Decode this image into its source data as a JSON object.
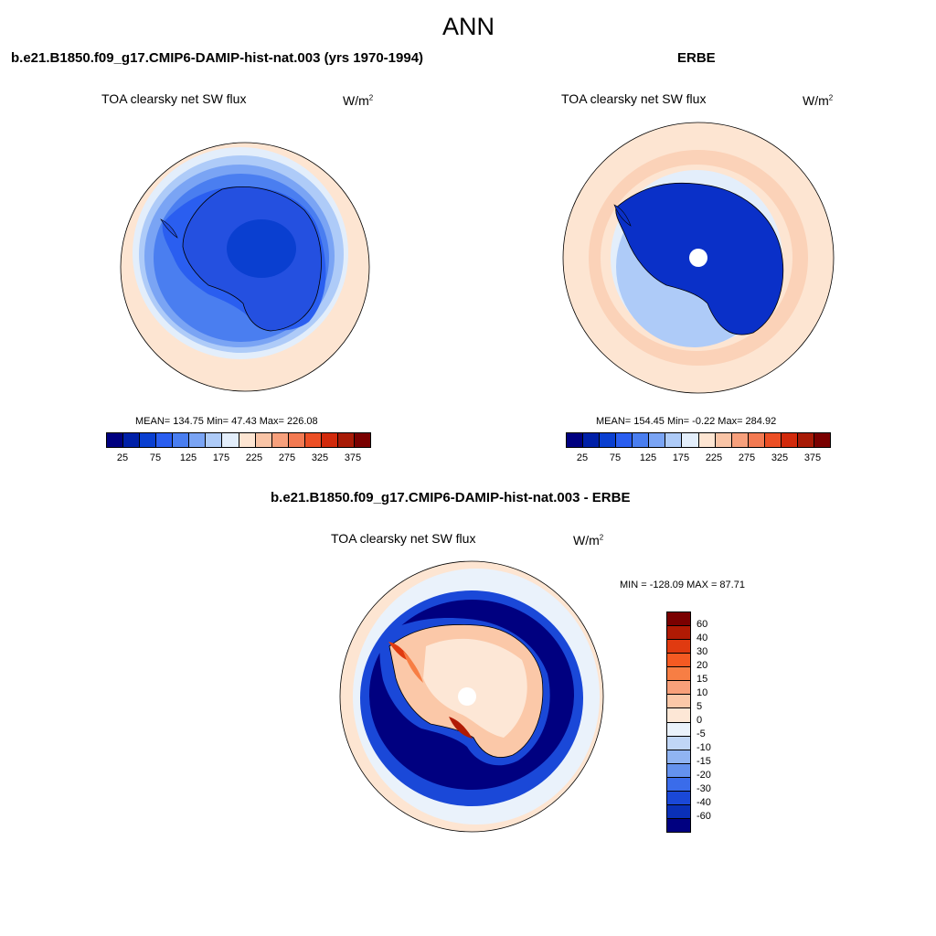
{
  "page_title": "ANN",
  "panels": {
    "model": {
      "title": "b.e21.B1850.f09_g17.CMIP6-DAMIP-hist-nat.003 (yrs 1970-1994)",
      "variable": "TOA clearsky net SW flux",
      "units_base": "W/m",
      "units_exp": "2",
      "stats": "MEAN= 134.75  Min=  47.43  Max= 226.08"
    },
    "obs": {
      "title": "ERBE",
      "variable": "TOA clearsky net SW flux",
      "units_base": "W/m",
      "units_exp": "2",
      "stats": "MEAN= 154.45  Min=  -0.22  Max= 284.92"
    },
    "diff": {
      "title": "b.e21.B1850.f09_g17.CMIP6-DAMIP-hist-nat.003 - ERBE",
      "variable": "TOA clearsky net SW flux",
      "units_base": "W/m",
      "units_exp": "2",
      "stats": "MIN = -128.09 MAX =  87.71"
    }
  },
  "abs_colorbar": {
    "colors": [
      "#000080",
      "#0020a8",
      "#0a3fd0",
      "#2a5ef0",
      "#4a7ef0",
      "#7aa4f4",
      "#aecbf8",
      "#e3eefb",
      "#fde5d2",
      "#f9c4a6",
      "#f7a07c",
      "#f37a52",
      "#ec4f25",
      "#d22a0c",
      "#a81a06",
      "#7a0000"
    ],
    "tick_labels": [
      "25",
      "75",
      "125",
      "175",
      "225",
      "275",
      "325",
      "375"
    ]
  },
  "diff_colorbar": {
    "colors": [
      "#7a0000",
      "#b01a04",
      "#e03a10",
      "#f55a22",
      "#f77e44",
      "#f8a07a",
      "#fbc8a8",
      "#fde7d6",
      "#eaf2fb",
      "#c0d6f6",
      "#90b4f2",
      "#6492ee",
      "#3a6cea",
      "#1a48d8",
      "#0a30b8",
      "#000080"
    ],
    "tick_labels": [
      "60",
      "40",
      "30",
      "20",
      "15",
      "10",
      "5",
      "0",
      "-5",
      "-10",
      "-15",
      "-20",
      "-30",
      "-40",
      "-60"
    ]
  }
}
